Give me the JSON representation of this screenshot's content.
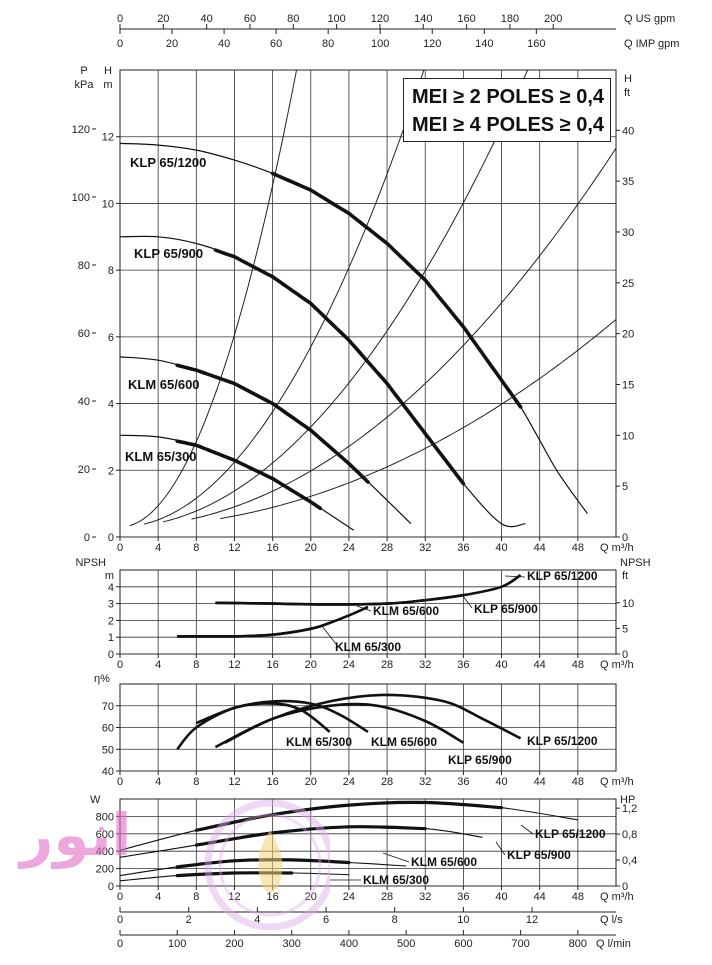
{
  "mei_box": {
    "line1": "MEI ≥ 2 POLES ≥ 0,4",
    "line2": "MEI ≥ 4 POLES ≥ 0,4"
  },
  "top_axes": {
    "us_label": "Q US gpm",
    "us_ticks": [
      "0",
      "20",
      "40",
      "60",
      "80",
      "100",
      "120",
      "140",
      "160",
      "180",
      "200"
    ],
    "imp_label": "Q IMP gpm",
    "imp_ticks": [
      "0",
      "20",
      "40",
      "60",
      "80",
      "100",
      "120",
      "140",
      "160"
    ]
  },
  "chart_data": [
    {
      "type": "line",
      "name": "head",
      "xlabel": "Q m³/h",
      "xlim": [
        0,
        52
      ],
      "x_ticks": [
        "0",
        "4",
        "8",
        "12",
        "16",
        "20",
        "24",
        "28",
        "32",
        "36",
        "40",
        "44",
        "48"
      ],
      "y_left_label_1": "P",
      "y_left_unit_1": "kPa",
      "y_left_label_2": "H",
      "y_left_unit_2": "m",
      "y_right_label": "H",
      "y_right_unit": "ft",
      "ylim": [
        0,
        14
      ],
      "p_ticks": [
        "0",
        "20",
        "40",
        "60",
        "80",
        "100",
        "120"
      ],
      "h_ticks": [
        "0",
        "2",
        "4",
        "6",
        "8",
        "10",
        "12"
      ],
      "ft_ticks": [
        "0",
        "5",
        "10",
        "15",
        "20",
        "25",
        "30",
        "35",
        "40"
      ],
      "series": [
        {
          "name": "KLP 65/1200",
          "x": [
            0,
            4,
            8,
            12,
            16,
            20,
            24,
            28,
            32,
            36,
            40,
            42,
            44,
            46,
            49
          ],
          "y": [
            11.8,
            11.75,
            11.6,
            11.3,
            10.9,
            10.4,
            9.7,
            8.8,
            7.7,
            6.3,
            4.7,
            3.9,
            2.9,
            1.9,
            0.7
          ],
          "bold_from": 16,
          "bold_to": 42
        },
        {
          "name": "KLP 65/900",
          "x": [
            0,
            4,
            8,
            12,
            16,
            20,
            24,
            28,
            32,
            36,
            40,
            42.5
          ],
          "y": [
            9.0,
            9.0,
            8.8,
            8.4,
            7.8,
            7.0,
            5.9,
            4.6,
            3.1,
            1.6,
            0.4,
            0.4
          ],
          "bold_from": 10,
          "bold_to": 36
        },
        {
          "name": "KLM 65/600",
          "x": [
            0,
            4,
            8,
            12,
            16,
            20,
            24,
            28,
            30.5
          ],
          "y": [
            5.4,
            5.3,
            5.0,
            4.6,
            4.0,
            3.2,
            2.2,
            1.1,
            0.4
          ],
          "bold_from": 6,
          "bold_to": 26
        },
        {
          "name": "KLM 65/300",
          "x": [
            0,
            4,
            8,
            12,
            16,
            20,
            24.5
          ],
          "y": [
            3.05,
            3.0,
            2.75,
            2.3,
            1.75,
            1.05,
            0.2
          ],
          "bold_from": 6,
          "bold_to": 21
        }
      ],
      "system_curves_kf": [
        0.04,
        0.0135,
        0.0075,
        0.0042,
        0.0023
      ]
    },
    {
      "type": "line",
      "name": "npsh",
      "ylabel": "NPSH",
      "yunit_left": "m",
      "yunit_right": "ft",
      "xlabel": "Q m³/h",
      "xlim": [
        0,
        52
      ],
      "ylim": [
        0,
        5
      ],
      "x_ticks": [
        "0",
        "4",
        "8",
        "12",
        "16",
        "20",
        "24",
        "28",
        "32",
        "36",
        "40",
        "44",
        "48"
      ],
      "m_ticks": [
        "0",
        "1",
        "2",
        "3",
        "4"
      ],
      "ft_ticks": [
        "0",
        "5",
        "10"
      ],
      "series": [
        {
          "name": "KLP 65/1200",
          "x": [
            10,
            16,
            22,
            28,
            32,
            36,
            40,
            42
          ],
          "y": [
            3.05,
            3.0,
            2.95,
            3.0,
            3.2,
            3.5,
            4.0,
            4.7
          ]
        },
        {
          "name": "KLP 65/900",
          "x": [
            10,
            16,
            22,
            28,
            32,
            36
          ],
          "y": [
            3.05,
            3.0,
            2.95,
            3.0,
            3.2,
            3.5
          ]
        },
        {
          "name": "KLM 65/600",
          "x": [
            6,
            12,
            16,
            20,
            22,
            24,
            26
          ],
          "y": [
            1.05,
            1.05,
            1.15,
            1.5,
            1.85,
            2.3,
            2.8
          ]
        },
        {
          "name": "KLM 65/300",
          "x": [
            6,
            12,
            16,
            20,
            22
          ],
          "y": [
            1.05,
            1.05,
            1.15,
            1.5,
            1.85
          ]
        }
      ]
    },
    {
      "type": "line",
      "name": "efficiency",
      "ylabel": "η%",
      "xlabel": "Q m³/h",
      "xlim": [
        0,
        52
      ],
      "ylim": [
        40,
        80
      ],
      "x_ticks": [
        "0",
        "4",
        "8",
        "12",
        "16",
        "20",
        "24",
        "28",
        "32",
        "36",
        "40",
        "44",
        "48"
      ],
      "y_ticks": [
        "40",
        "50",
        "60",
        "70"
      ],
      "series": [
        {
          "name": "KLM 65/300",
          "x": [
            6,
            8,
            12,
            16,
            19,
            22
          ],
          "y": [
            50,
            60,
            69,
            71,
            68,
            58
          ]
        },
        {
          "name": "KLM 65/600",
          "x": [
            8,
            12,
            16,
            20,
            23,
            26
          ],
          "y": [
            62,
            69,
            72,
            71,
            66,
            58
          ]
        },
        {
          "name": "KLP 65/900",
          "x": [
            10,
            16,
            22,
            27,
            32,
            36
          ],
          "y": [
            51,
            64,
            70,
            70,
            63,
            53
          ]
        },
        {
          "name": "KLP 65/1200",
          "x": [
            11,
            16,
            22,
            28,
            34,
            38,
            42
          ],
          "y": [
            53,
            64,
            72,
            75,
            72,
            64,
            55
          ]
        }
      ]
    },
    {
      "type": "line",
      "name": "power",
      "ylabel": "W",
      "yunit_right": "HP",
      "xlabel": "Q m³/h",
      "xlim": [
        0,
        52
      ],
      "ylim": [
        0,
        1000
      ],
      "x_ticks": [
        "0",
        "4",
        "8",
        "12",
        "16",
        "20",
        "24",
        "28",
        "32",
        "36",
        "40",
        "44",
        "48"
      ],
      "y_ticks": [
        "0",
        "200",
        "400",
        "600",
        "800"
      ],
      "hp_ticks": [
        "0",
        "0,4",
        "0,8",
        "1,2"
      ],
      "series": [
        {
          "name": "KLP 65/1200",
          "x": [
            0,
            8,
            16,
            24,
            32,
            40,
            48
          ],
          "y": [
            410,
            640,
            820,
            930,
            960,
            900,
            760
          ]
        },
        {
          "name": "KLP 65/900",
          "x": [
            0,
            8,
            16,
            24,
            32,
            38
          ],
          "y": [
            330,
            470,
            610,
            680,
            660,
            560
          ]
        },
        {
          "name": "KLM 65/600",
          "x": [
            0,
            6,
            12,
            18,
            24,
            30
          ],
          "y": [
            120,
            220,
            290,
            300,
            270,
            230
          ]
        },
        {
          "name": "KLM 65/300",
          "x": [
            0,
            6,
            12,
            18,
            24
          ],
          "y": [
            60,
            120,
            150,
            150,
            130
          ]
        }
      ]
    }
  ],
  "bottom_axes": {
    "m3h_label": "Q m³/h",
    "m3h_ticks": [
      "0",
      "4",
      "8",
      "12",
      "16",
      "20",
      "24",
      "28",
      "32",
      "36",
      "40",
      "44",
      "48"
    ],
    "ls_label": "Q l/s",
    "ls_ticks": [
      "0",
      "2",
      "4",
      "6",
      "8",
      "10",
      "12"
    ],
    "lmin_label": "Q l/min",
    "lmin_ticks": [
      "0",
      "100",
      "200",
      "300",
      "400",
      "500",
      "600",
      "700",
      "800"
    ]
  },
  "watermark": {
    "text": "انور",
    "color": "#e070c8"
  },
  "colors": {
    "line": "#111111",
    "grid": "#222222",
    "watermark": "#e070c8"
  }
}
